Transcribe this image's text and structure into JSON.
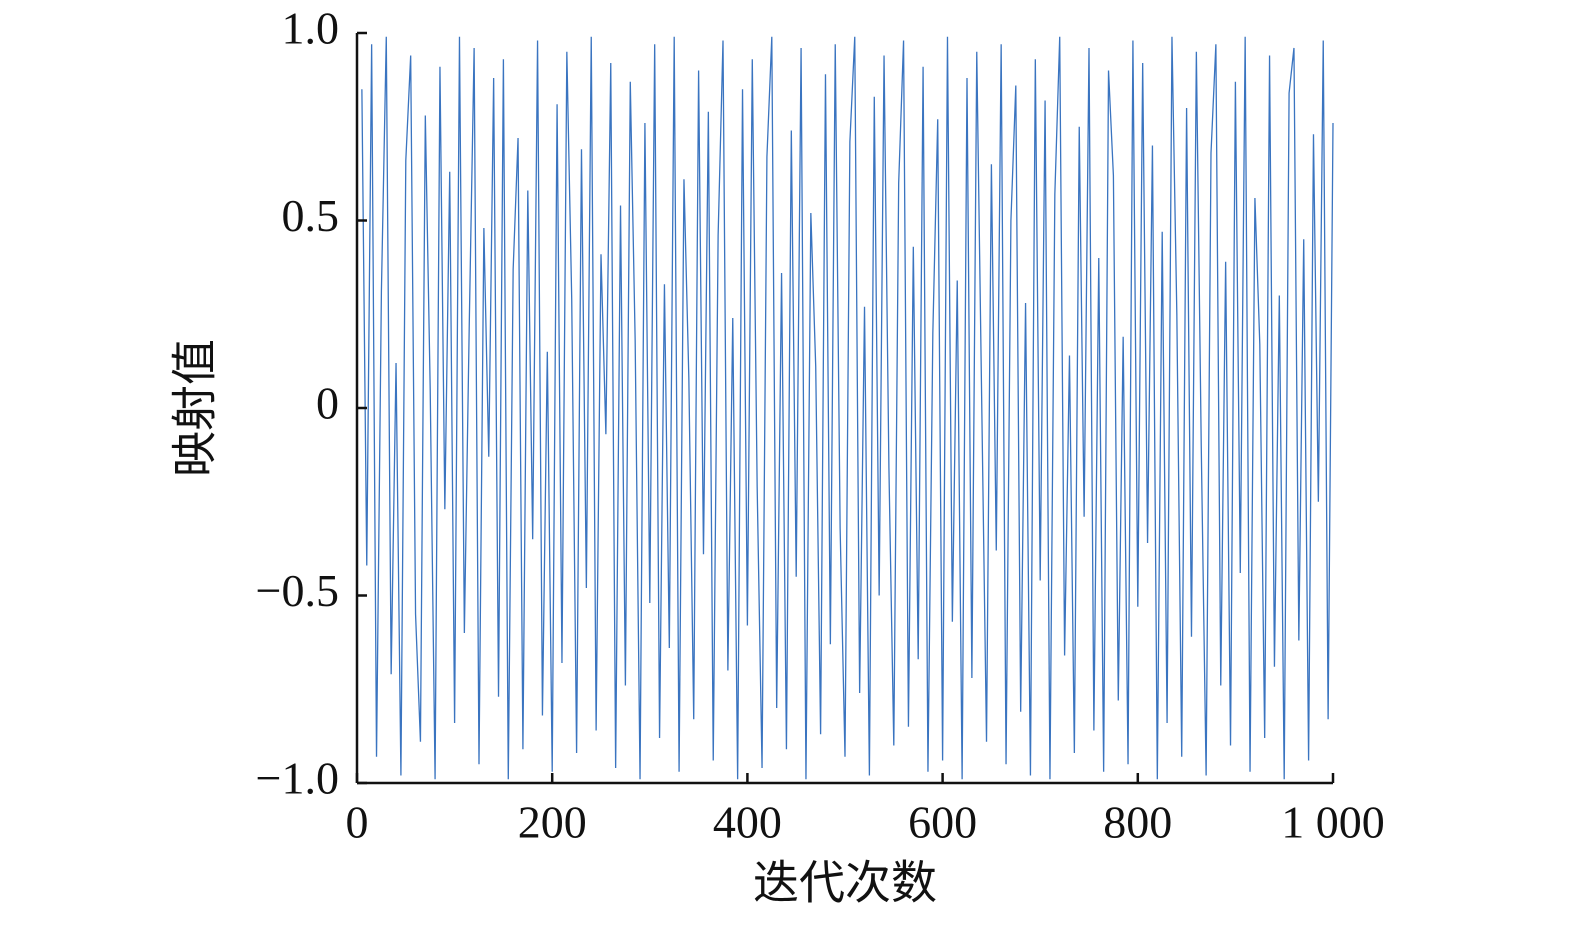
{
  "chart_data": {
    "type": "line",
    "x_label": "迭代次数",
    "y_label": "映射值",
    "xlim": [
      0,
      1000
    ],
    "ylim": [
      -1,
      1
    ],
    "xticks": [
      0,
      200,
      400,
      600,
      800,
      {
        "value": 1000,
        "label": "1 000"
      }
    ],
    "yticks": [
      {
        "value": -1,
        "label": "−1.0"
      },
      {
        "value": -0.5,
        "label": "−0.5"
      },
      0,
      {
        "value": 0.5,
        "label": "0.5"
      },
      {
        "value": 1,
        "label": "1.0"
      }
    ],
    "series": [
      {
        "color": "#3a74c0",
        "x": [
          5,
          10,
          15,
          20,
          25,
          30,
          35,
          40,
          45,
          50,
          55,
          60,
          65,
          70,
          75,
          80,
          85,
          90,
          95,
          100,
          105,
          110,
          115,
          120,
          125,
          130,
          135,
          140,
          145,
          150,
          155,
          160,
          165,
          170,
          175,
          180,
          185,
          190,
          195,
          200,
          205,
          210,
          215,
          220,
          225,
          230,
          235,
          240,
          245,
          250,
          255,
          260,
          265,
          270,
          275,
          280,
          285,
          290,
          295,
          300,
          305,
          310,
          315,
          320,
          325,
          330,
          335,
          340,
          345,
          350,
          355,
          360,
          365,
          370,
          375,
          380,
          385,
          390,
          395,
          400,
          405,
          410,
          415,
          420,
          425,
          430,
          435,
          440,
          445,
          450,
          455,
          460,
          465,
          470,
          475,
          480,
          485,
          490,
          495,
          500,
          505,
          510,
          515,
          520,
          525,
          530,
          535,
          540,
          545,
          550,
          555,
          560,
          565,
          570,
          575,
          580,
          585,
          590,
          595,
          600,
          605,
          610,
          615,
          620,
          625,
          630,
          635,
          640,
          645,
          650,
          655,
          660,
          665,
          670,
          675,
          680,
          685,
          690,
          695,
          700,
          705,
          710,
          715,
          720,
          725,
          730,
          735,
          740,
          745,
          750,
          755,
          760,
          765,
          770,
          775,
          780,
          785,
          790,
          795,
          800,
          805,
          810,
          815,
          820,
          825,
          830,
          835,
          840,
          845,
          850,
          855,
          860,
          865,
          870,
          875,
          880,
          885,
          890,
          895,
          900,
          905,
          910,
          915,
          920,
          925,
          930,
          935,
          940,
          945,
          950,
          955,
          960,
          965,
          970,
          975,
          980,
          985,
          990,
          995,
          1000
        ],
        "values": [
          0.85,
          -0.42,
          0.97,
          -0.93,
          0.31,
          0.99,
          -0.71,
          0.12,
          -0.98,
          0.66,
          0.94,
          -0.55,
          -0.89,
          0.78,
          0.05,
          -0.99,
          0.91,
          -0.27,
          0.63,
          -0.84,
          0.99,
          -0.6,
          0.22,
          0.96,
          -0.95,
          0.48,
          -0.13,
          0.88,
          -0.77,
          0.93,
          -0.99,
          0.37,
          0.72,
          -0.91,
          0.58,
          -0.35,
          0.98,
          -0.82,
          0.15,
          -0.97,
          0.81,
          -0.68,
          0.95,
          0.29,
          -0.92,
          0.69,
          -0.48,
          0.99,
          -0.86,
          0.41,
          -0.07,
          0.92,
          -0.96,
          0.54,
          -0.74,
          0.87,
          0.18,
          -0.99,
          0.76,
          -0.52,
          0.97,
          -0.88,
          0.33,
          -0.64,
          0.99,
          -0.97,
          0.61,
          0.08,
          -0.83,
          0.9,
          -0.39,
          0.79,
          -0.94,
          0.46,
          0.98,
          -0.7,
          0.24,
          -0.99,
          0.85,
          -0.58,
          0.93,
          -0.21,
          -0.96,
          0.67,
          0.99,
          -0.8,
          0.36,
          -0.91,
          0.74,
          -0.45,
          0.96,
          -0.99,
          0.52,
          0.11,
          -0.87,
          0.89,
          -0.63,
          0.97,
          -0.32,
          -0.93,
          0.71,
          0.99,
          -0.76,
          0.27,
          -0.98,
          0.83,
          -0.5,
          0.94,
          -0.16,
          -0.9,
          0.6,
          0.98,
          -0.85,
          0.43,
          -0.67,
          0.91,
          -0.97,
          0.2,
          0.77,
          -0.94,
          0.99,
          -0.57,
          0.34,
          -0.99,
          0.88,
          -0.72,
          0.95,
          0.03,
          -0.89,
          0.65,
          -0.38,
          0.97,
          -0.95,
          0.5,
          0.86,
          -0.81,
          0.28,
          -0.98,
          0.93,
          -0.46,
          0.82,
          -0.99,
          0.57,
          0.99,
          -0.66,
          0.14,
          -0.92,
          0.75,
          -0.29,
          0.96,
          -0.86,
          0.4,
          -0.97,
          0.9,
          0.62,
          -0.78,
          0.19,
          -0.95,
          0.98,
          -0.53,
          0.92,
          -0.36,
          0.7,
          -0.99,
          0.47,
          -0.84,
          0.99,
          0.25,
          -0.93,
          0.8,
          -0.61,
          0.95,
          -0.1,
          -0.98,
          0.68,
          0.97,
          -0.74,
          0.39,
          -0.9,
          0.87,
          -0.44,
          0.99,
          -0.97,
          0.56,
          0.17,
          -0.88,
          0.94,
          -0.69,
          0.3,
          -0.99,
          0.84,
          0.96,
          -0.62,
          0.45,
          -0.94,
          0.73,
          -0.25,
          0.98,
          -0.83,
          0.76
        ]
      }
    ]
  }
}
